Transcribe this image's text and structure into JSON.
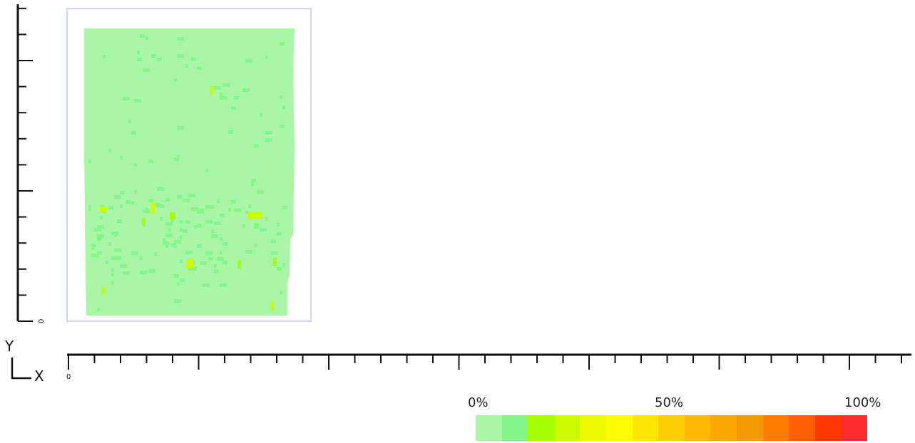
{
  "axes": {
    "y_letter": "Y",
    "x_letter": "X",
    "y_origin_label": "0",
    "x_origin_label": "0"
  },
  "legend": {
    "labels": {
      "low": "0%",
      "mid": "50%",
      "high": "100%"
    },
    "colors": [
      "#a9f7a6",
      "#84f78a",
      "#a5ff00",
      "#cdfb00",
      "#ecfb00",
      "#fffb00",
      "#ffe600",
      "#fdcc00",
      "#feb900",
      "#fba700",
      "#f29a00",
      "#ff7d00",
      "#ff5f00",
      "#ff3a00",
      "#fc2a2a"
    ]
  },
  "heatmap": {
    "base_color": "#a9f7a6",
    "speckle_color": "#84f78a",
    "hot_color_1": "#cdfb00",
    "hot_color_2": "#a5ff00",
    "frame_color": "#9fa8ff"
  }
}
